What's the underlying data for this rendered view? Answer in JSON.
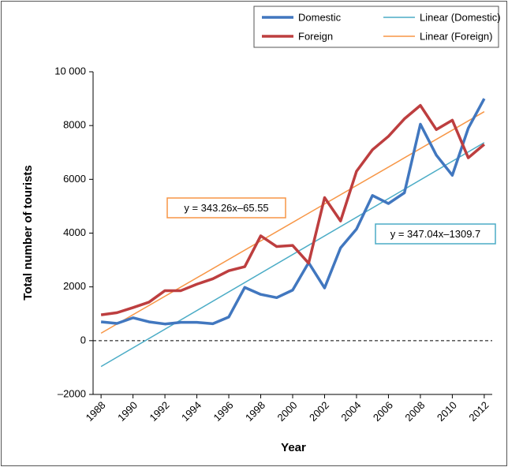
{
  "chart_data": {
    "type": "line",
    "y_label": "Total number of tourists",
    "x_label": "Year",
    "x": [
      1988,
      1989,
      1990,
      1991,
      1992,
      1993,
      1994,
      1995,
      1996,
      1997,
      1998,
      1999,
      2000,
      2001,
      2002,
      2003,
      2004,
      2005,
      2006,
      2007,
      2008,
      2009,
      2010,
      2011,
      2012
    ],
    "series": [
      {
        "name": "Domestic",
        "color": "#4177bf",
        "values": [
          700,
          640,
          850,
          700,
          620,
          680,
          680,
          630,
          880,
          1980,
          1720,
          1600,
          1880,
          2900,
          1960,
          3450,
          4150,
          5400,
          5100,
          5500,
          8050,
          6900,
          6150,
          7900,
          9000
        ]
      },
      {
        "name": "Foreign",
        "color": "#bd3e3f",
        "values": [
          960,
          1040,
          1230,
          1430,
          1860,
          1860,
          2100,
          2300,
          2600,
          2750,
          3900,
          3500,
          3540,
          2880,
          5320,
          4450,
          6300,
          7100,
          7600,
          8250,
          8750,
          7850,
          8200,
          6800,
          7300
        ]
      },
      {
        "name": "Linear (Domestic)",
        "color": "#4bacc6",
        "x": [
          1988,
          2012
        ],
        "values": [
          -963,
          7366
        ]
      },
      {
        "name": "Linear (Foreign)",
        "color": "#f79646",
        "x": [
          1988,
          2012
        ],
        "values": [
          278,
          8516
        ]
      }
    ],
    "annotations": [
      {
        "text": "y = 343.26x–65.55",
        "color": "#f79646"
      },
      {
        "text": "y = 347.04x–1309.7",
        "color": "#4bacc6"
      }
    ],
    "xlim": [
      1987.5,
      2012.5
    ],
    "xticks": [
      1988,
      1990,
      1992,
      1994,
      1996,
      1998,
      2000,
      2002,
      2004,
      2006,
      2008,
      2010,
      2012
    ],
    "ylim": [
      -2000,
      10000
    ],
    "yticks": [
      {
        "value": -2000,
        "label": "–2000"
      },
      0,
      2000,
      4000,
      6000,
      8000,
      {
        "value": 10000,
        "label": "10 000"
      }
    ],
    "legend": "top-right"
  }
}
